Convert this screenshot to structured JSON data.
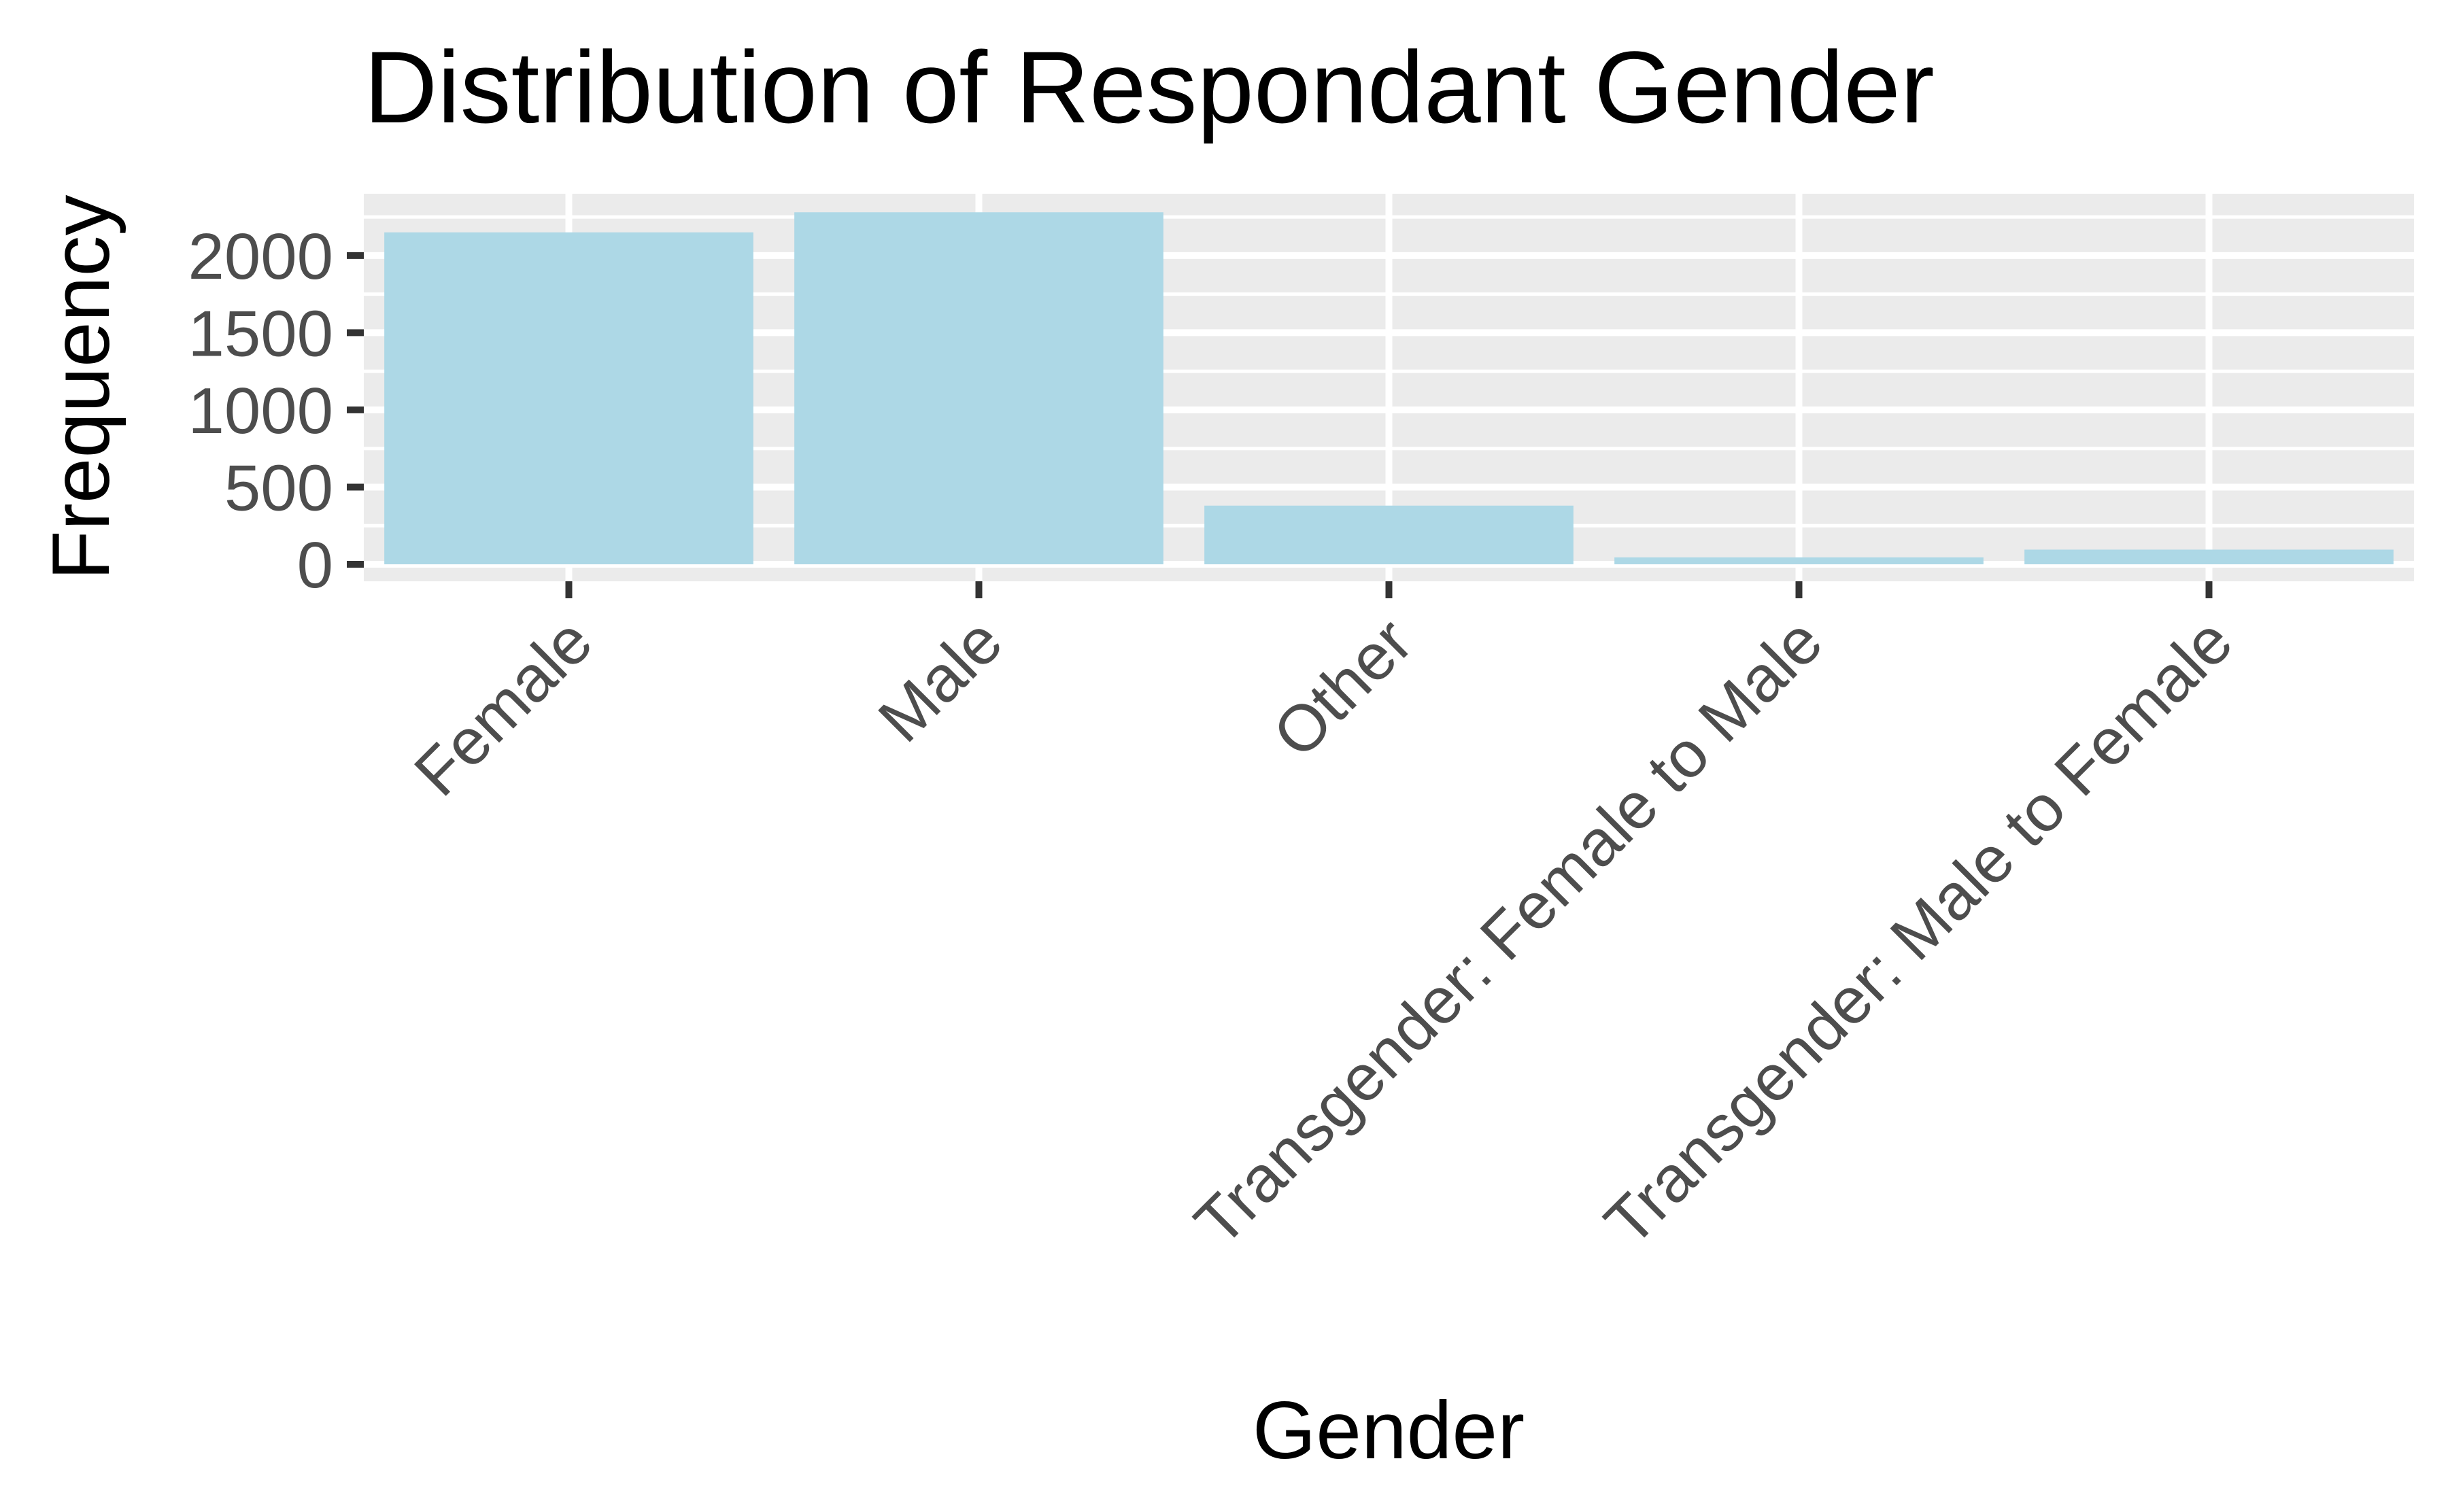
{
  "chart_data": {
    "type": "bar",
    "title": "Distribution of Respondant Gender",
    "xlabel": "Gender",
    "ylabel": "Frequency",
    "categories": [
      "Female",
      "Male",
      "Other",
      "Transgender: Female to Male",
      "Transgender: Male to Female"
    ],
    "values": [
      2150,
      2280,
      380,
      45,
      95
    ],
    "ylim": [
      -110,
      2400
    ],
    "yticks": [
      0,
      500,
      1000,
      1500,
      2000
    ],
    "ytick_labels": [
      "0",
      "500",
      "1000",
      "1500",
      "2000"
    ],
    "grid": true,
    "legend": "none",
    "colors": {
      "bar": "#add8e6",
      "panel_background": "#ebebeb",
      "grid": "#ffffff",
      "tick": "#333333",
      "tick_label": "#4d4d4d",
      "text": "#000000"
    }
  }
}
